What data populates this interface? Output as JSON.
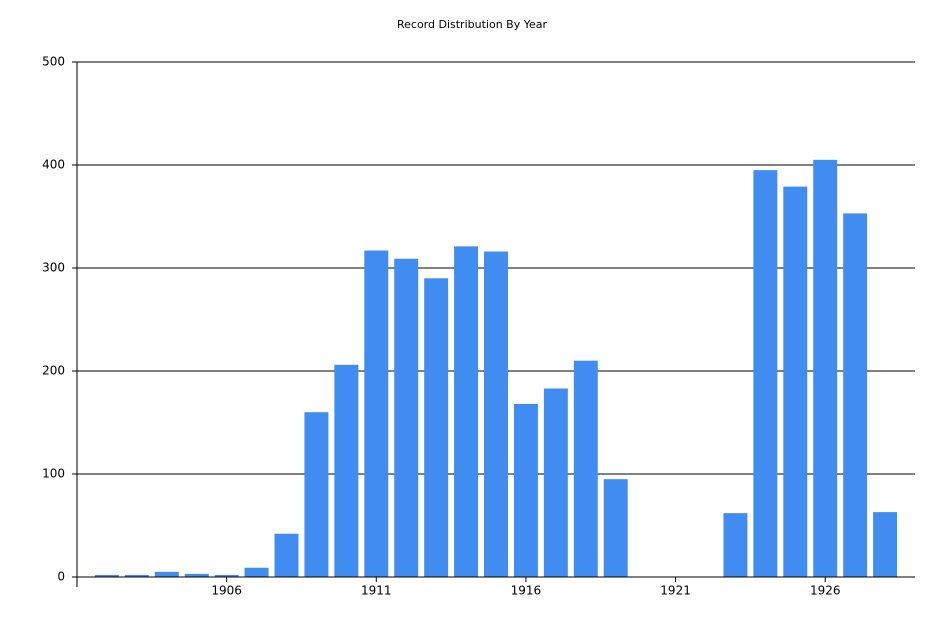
{
  "chart_data": {
    "type": "bar",
    "title": "Record Distribution By Year",
    "x": [
      1902,
      1903,
      1904,
      1905,
      1906,
      1907,
      1908,
      1909,
      1910,
      1911,
      1912,
      1913,
      1914,
      1915,
      1916,
      1917,
      1918,
      1919,
      1923,
      1924,
      1925,
      1926,
      1927,
      1928
    ],
    "values": [
      2,
      2,
      5,
      3,
      2,
      9,
      42,
      160,
      206,
      317,
      309,
      290,
      321,
      316,
      168,
      183,
      210,
      95,
      62,
      395,
      379,
      405,
      353,
      63
    ],
    "color": "#418cf0",
    "xlim": [
      1901,
      1929
    ],
    "xticks": [
      1906,
      1911,
      1916,
      1921,
      1926
    ],
    "ylim": [
      0,
      500
    ],
    "yticks": [
      0,
      100,
      200,
      300,
      400,
      500
    ],
    "grid": true
  }
}
